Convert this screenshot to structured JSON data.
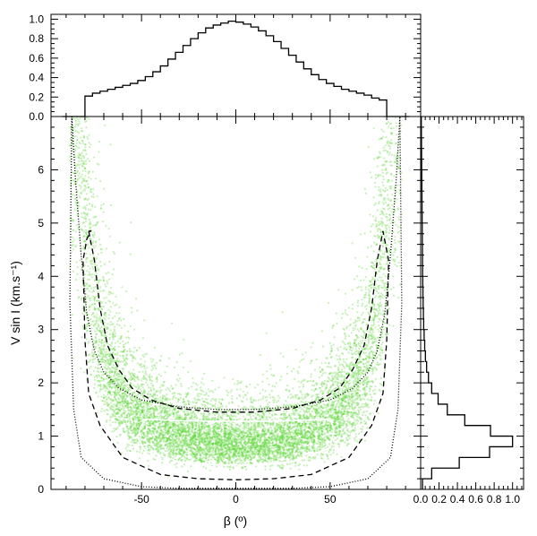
{
  "chart_data": [
    {
      "type": "histogram",
      "panel": "top",
      "x": [
        -90,
        -86,
        -82,
        -78,
        -74,
        -70,
        -66,
        -62,
        -58,
        -54,
        -50,
        -46,
        -42,
        -38,
        -34,
        -30,
        -26,
        -22,
        -18,
        -14,
        -10,
        -6,
        -2,
        2,
        6,
        10,
        14,
        18,
        22,
        26,
        30,
        34,
        38,
        42,
        46,
        50,
        54,
        58,
        62,
        66,
        70,
        74,
        78,
        82,
        86,
        90
      ],
      "values": [
        0,
        0,
        0,
        0.21,
        0.24,
        0.26,
        0.28,
        0.3,
        0.32,
        0.34,
        0.37,
        0.41,
        0.46,
        0.52,
        0.59,
        0.66,
        0.73,
        0.8,
        0.86,
        0.91,
        0.94,
        0.96,
        0.98,
        0.97,
        0.95,
        0.92,
        0.88,
        0.83,
        0.77,
        0.7,
        0.63,
        0.56,
        0.49,
        0.43,
        0.38,
        0.34,
        0.31,
        0.28,
        0.26,
        0.24,
        0.22,
        0.19,
        0.17,
        0,
        0,
        0
      ],
      "xlim": [
        -98,
        98
      ],
      "ylim": [
        0,
        1.05
      ],
      "yticks": [
        "0.0",
        "0.2",
        "0.4",
        "0.6",
        "0.8",
        "1.0"
      ]
    },
    {
      "type": "scatter",
      "panel": "main",
      "xlabel": "β (º)",
      "ylabel": "V sin I (km.s⁻¹)",
      "xlim": [
        -98,
        98
      ],
      "ylim": [
        0,
        7.0
      ],
      "xticks": [
        "-50",
        "0",
        "50"
      ],
      "yticks": [
        "0",
        "1",
        "2",
        "3",
        "4",
        "5",
        "6"
      ],
      "point_color": "#5ed63a",
      "contours": [
        {
          "style": "solid",
          "color": "#ffffff",
          "x": [
            -48,
            -30,
            -10,
            10,
            30,
            50,
            52,
            50,
            30,
            10,
            -10,
            -30,
            -48,
            -52,
            -50,
            -48
          ],
          "y": [
            1.32,
            1.29,
            1.28,
            1.28,
            1.29,
            1.32,
            1.12,
            0.78,
            0.52,
            0.46,
            0.46,
            0.52,
            0.72,
            0.98,
            1.2,
            1.32
          ]
        },
        {
          "style": "dashed",
          "color": "#000000",
          "x": [
            -78,
            -75,
            -72,
            -68,
            -62,
            -55,
            -45,
            -30,
            -10,
            10,
            30,
            45,
            55,
            62,
            68,
            72,
            75,
            78,
            81,
            80,
            78,
            72,
            60,
            40,
            20,
            0,
            -20,
            -40,
            -60,
            -72,
            -78,
            -80,
            -81,
            -79,
            -77,
            -78
          ],
          "y": [
            4.85,
            4.3,
            3.4,
            2.7,
            2.25,
            1.9,
            1.68,
            1.52,
            1.45,
            1.45,
            1.52,
            1.68,
            1.9,
            2.25,
            2.7,
            3.4,
            4.3,
            4.85,
            4.3,
            2.8,
            1.8,
            1.2,
            0.6,
            0.28,
            0.2,
            0.18,
            0.2,
            0.28,
            0.6,
            1.2,
            1.8,
            2.8,
            4.3,
            4.7,
            4.85,
            4.85
          ]
        },
        {
          "style": "dotted",
          "color": "#000000",
          "x": [
            -87,
            -85,
            -82,
            -79,
            -75,
            -70,
            -62,
            -50,
            -30,
            -10,
            10,
            30,
            50,
            62,
            70,
            75,
            79,
            82,
            85,
            87,
            88,
            86,
            82,
            70,
            50,
            30,
            0,
            -30,
            -50,
            -70,
            -82,
            -86,
            -88,
            -87
          ],
          "y": [
            7.0,
            5.8,
            4.4,
            3.3,
            2.6,
            2.2,
            1.9,
            1.68,
            1.55,
            1.5,
            1.5,
            1.55,
            1.68,
            1.9,
            2.2,
            2.6,
            3.3,
            4.4,
            5.8,
            7.0,
            3.5,
            1.5,
            0.6,
            0.2,
            0.05,
            0.02,
            0.02,
            0.02,
            0.05,
            0.2,
            0.6,
            1.5,
            3.5,
            7.0
          ]
        }
      ]
    },
    {
      "type": "histogram",
      "panel": "right",
      "orientation": "horizontal",
      "y": [
        0.1,
        0.3,
        0.5,
        0.7,
        0.9,
        1.1,
        1.3,
        1.5,
        1.7,
        1.9,
        2.1,
        2.3,
        2.5,
        2.7,
        2.9,
        3.1,
        3.3,
        3.5,
        3.7,
        3.9,
        4.1,
        4.3,
        4.5,
        4.7,
        4.9,
        5.1,
        5.3,
        5.5,
        5.7,
        5.9,
        6.1,
        6.3,
        6.5,
        6.7,
        6.9
      ],
      "values": [
        0.02,
        0.12,
        0.42,
        0.75,
        1.0,
        0.76,
        0.48,
        0.29,
        0.19,
        0.12,
        0.085,
        0.065,
        0.052,
        0.044,
        0.038,
        0.033,
        0.03,
        0.027,
        0.025,
        0.023,
        0.021,
        0.02,
        0.019,
        0.018,
        0.017,
        0.016,
        0.015,
        0.014,
        0.013,
        0.012,
        0.011,
        0.01,
        0.009,
        0.008,
        0.007
      ],
      "xlim": [
        0,
        1.12
      ],
      "xticks": [
        "0.0",
        "0.2",
        "0.4",
        "0.6",
        "0.8",
        "1.0"
      ]
    }
  ]
}
